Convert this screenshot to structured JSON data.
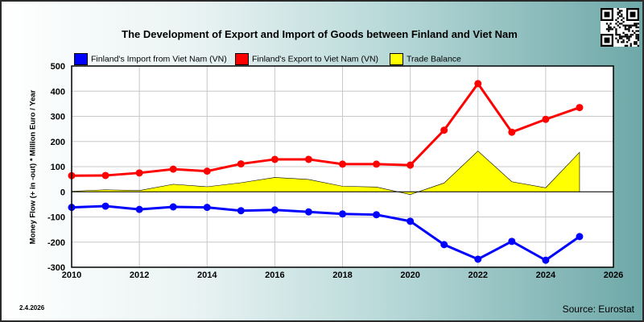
{
  "chart_data": {
    "type": "line",
    "title": "The Development of Export and Import of Goods between Finland and Viet Nam",
    "ylabel": "Money Flow (+ in -out) * Million Euro / Year",
    "xlabel": "",
    "ylim": [
      -300,
      500
    ],
    "xlim": [
      2010,
      2026
    ],
    "yticks": [
      "500",
      "400",
      "300",
      "200",
      "100",
      "0",
      "-100",
      "-200",
      "-300"
    ],
    "xticks": [
      "2010",
      "2012",
      "2014",
      "2016",
      "2018",
      "2020",
      "2022",
      "2024",
      "2026"
    ],
    "grid": true,
    "legend_position": "top",
    "x": [
      2010,
      2011,
      2012,
      2013,
      2014,
      2015,
      2016,
      2017,
      2018,
      2019,
      2020,
      2021,
      2022,
      2023,
      2024,
      2025
    ],
    "series": [
      {
        "name": "Finland's Import from Viet Nam (VN)",
        "color": "#0000ff",
        "values": [
          -62,
          -57,
          -70,
          -60,
          -62,
          -75,
          -72,
          -80,
          -88,
          -91,
          -117,
          -210,
          -268,
          -197,
          -272,
          -178
        ]
      },
      {
        "name": "Finland's Export to Viet Nam (VN)",
        "color": "#ff0000",
        "values": [
          64,
          65,
          75,
          90,
          82,
          111,
          129,
          129,
          110,
          110,
          106,
          245,
          430,
          237,
          288,
          335
        ]
      },
      {
        "name": "Trade Balance",
        "color": "#ffff00",
        "type": "area",
        "values": [
          2,
          8,
          5,
          30,
          20,
          36,
          57,
          49,
          22,
          19,
          -11,
          35,
          162,
          40,
          16,
          157
        ]
      }
    ]
  },
  "footer": {
    "date": "2.4.2026",
    "source": "Source: Eurostat"
  },
  "icons": {
    "corner": "qr-code-icon"
  }
}
